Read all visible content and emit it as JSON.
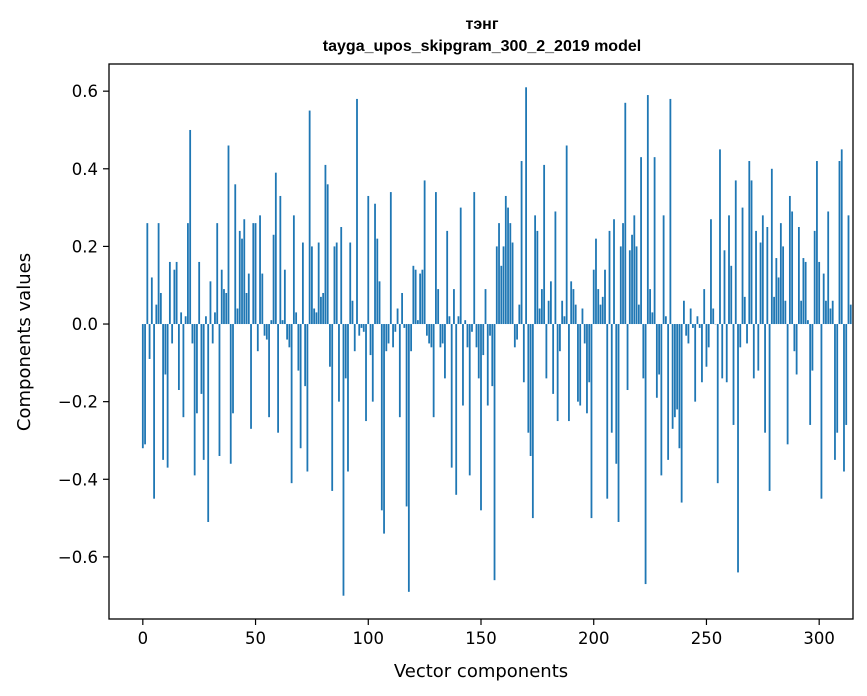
{
  "chart_data": {
    "type": "bar",
    "title": "тэнг",
    "subtitle": "tayga_upos_skipgram_300_2_2019 model",
    "xlabel": "Vector components",
    "ylabel": "Components values",
    "xlim": [
      -15,
      315
    ],
    "ylim": [
      -0.76,
      0.67
    ],
    "xticks": [
      0,
      50,
      100,
      150,
      200,
      250,
      300
    ],
    "xtick_labels": [
      "0",
      "50",
      "100",
      "150",
      "200",
      "250",
      "300"
    ],
    "yticks": [
      -0.6,
      -0.4,
      -0.2,
      0.0,
      0.2,
      0.4,
      0.6
    ],
    "ytick_labels": [
      "−0.6",
      "−0.4",
      "−0.2",
      "0.0",
      "0.2",
      "0.4",
      "0.6"
    ],
    "grid": false,
    "bar_color": "#1f77b4",
    "x_start": 0,
    "values": [
      -0.32,
      -0.31,
      0.26,
      -0.09,
      0.12,
      -0.45,
      0.05,
      0.26,
      0.08,
      -0.35,
      -0.13,
      -0.37,
      0.16,
      -0.05,
      0.14,
      0.16,
      -0.17,
      0.03,
      -0.24,
      0.02,
      0.26,
      0.5,
      -0.05,
      -0.39,
      -0.23,
      0.16,
      -0.18,
      -0.35,
      0.02,
      -0.51,
      0.11,
      -0.05,
      0.03,
      0.26,
      -0.34,
      0.14,
      0.09,
      0.08,
      0.46,
      -0.36,
      -0.23,
      0.36,
      0.04,
      0.24,
      0.22,
      0.27,
      0.08,
      0.13,
      -0.27,
      0.26,
      0.26,
      -0.07,
      0.28,
      0.13,
      -0.03,
      -0.04,
      -0.24,
      0.01,
      0.23,
      0.39,
      -0.28,
      0.33,
      0.01,
      0.14,
      -0.04,
      -0.06,
      -0.41,
      0.28,
      0.03,
      -0.12,
      -0.32,
      0.21,
      -0.16,
      -0.38,
      0.55,
      0.2,
      0.04,
      0.03,
      0.21,
      0.07,
      0.08,
      0.41,
      0.36,
      -0.11,
      -0.43,
      0.2,
      0.21,
      -0.2,
      0.25,
      -0.7,
      -0.14,
      -0.38,
      0.21,
      0.06,
      -0.07,
      0.58,
      -0.03,
      -0.01,
      -0.02,
      -0.25,
      0.33,
      -0.08,
      -0.2,
      0.31,
      0.22,
      0.11,
      -0.48,
      -0.54,
      -0.07,
      -0.05,
      0.34,
      -0.06,
      -0.02,
      0.04,
      -0.24,
      0.08,
      -0.01,
      -0.47,
      -0.69,
      -0.07,
      0.15,
      0.14,
      0.01,
      0.13,
      0.14,
      0.37,
      -0.03,
      -0.05,
      -0.06,
      -0.24,
      0.34,
      0.09,
      -0.06,
      -0.05,
      -0.14,
      0.24,
      0.02,
      -0.37,
      0.09,
      -0.44,
      0.02,
      0.3,
      -0.21,
      0.01,
      -0.06,
      -0.39,
      -0.02,
      0.34,
      -0.06,
      -0.14,
      -0.48,
      -0.08,
      0.09,
      -0.21,
      -0.03,
      -0.16,
      -0.66,
      0.2,
      0.26,
      0.15,
      0.2,
      0.33,
      0.3,
      0.26,
      0.21,
      -0.06,
      -0.04,
      0.05,
      0.42,
      -0.15,
      0.61,
      -0.28,
      -0.34,
      -0.5,
      0.28,
      0.24,
      0.04,
      0.09,
      0.41,
      -0.14,
      0.06,
      0.11,
      -0.18,
      0.29,
      -0.25,
      -0.07,
      0.06,
      0.02,
      0.46,
      -0.25,
      0.11,
      0.09,
      0.05,
      -0.2,
      -0.21,
      0.04,
      -0.05,
      -0.23,
      -0.15,
      -0.5,
      0.14,
      0.22,
      0.09,
      0.05,
      0.07,
      0.14,
      -0.45,
      0.24,
      -0.28,
      0.27,
      -0.36,
      -0.51,
      0.2,
      0.26,
      0.57,
      -0.17,
      0.19,
      0.23,
      0.28,
      0.2,
      0.05,
      0.43,
      -0.14,
      -0.67,
      0.59,
      0.09,
      0.03,
      0.43,
      -0.19,
      -0.13,
      -0.39,
      0.28,
      0.02,
      -0.35,
      0.58,
      -0.27,
      -0.24,
      -0.22,
      -0.32,
      -0.46,
      0.06,
      -0.03,
      -0.05,
      0.04,
      -0.01,
      -0.2,
      0.02,
      -0.01,
      -0.15,
      0.09,
      -0.11,
      -0.06,
      0.27,
      0.04,
      0.0,
      -0.41,
      0.45,
      -0.14,
      0.19,
      -0.15,
      0.28,
      0.15,
      -0.26,
      0.37,
      -0.64,
      -0.06,
      0.3,
      0.07,
      -0.05,
      0.42,
      0.37,
      -0.14,
      0.24,
      -0.12,
      0.21,
      0.28,
      -0.28,
      0.25,
      -0.43,
      0.4,
      0.07,
      0.17,
      0.12,
      0.26,
      0.2,
      0.06,
      -0.31,
      0.33,
      0.29,
      -0.07,
      -0.13,
      0.25,
      0.06,
      0.17,
      0.16,
      0.01,
      -0.26,
      -0.12,
      0.24,
      0.42,
      0.16,
      -0.45,
      0.13,
      0.06,
      0.29,
      0.04,
      0.06,
      -0.35,
      -0.28,
      0.42,
      0.45,
      -0.38,
      -0.26,
      0.28,
      0.05
    ]
  }
}
